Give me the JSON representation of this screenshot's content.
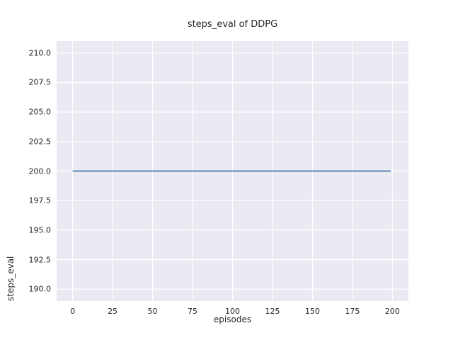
{
  "chart_data": {
    "type": "line",
    "title": "steps_eval of DDPG",
    "xlabel": "episodes",
    "ylabel": "steps_eval",
    "x_ticks": [
      0,
      25,
      50,
      75,
      100,
      125,
      150,
      175,
      200
    ],
    "x_tick_labels": [
      "0",
      "25",
      "50",
      "75",
      "100",
      "125",
      "150",
      "175",
      "200"
    ],
    "y_ticks": [
      190.0,
      192.5,
      195.0,
      197.5,
      200.0,
      202.5,
      205.0,
      207.5,
      210.0
    ],
    "y_tick_labels": [
      "190.0",
      "192.5",
      "195.0",
      "197.5",
      "200.0",
      "202.5",
      "205.0",
      "207.5",
      "210.0"
    ],
    "xlim": [
      -10,
      210
    ],
    "ylim": [
      189,
      211
    ],
    "grid": true,
    "legend": "none",
    "plot_background_color": "#eaeaf2",
    "gridline_color": "#ffffff",
    "text_color": "#262626",
    "series": [
      {
        "name": "DDPG steps_eval",
        "color": "#4c72b0",
        "x": [
          0,
          199
        ],
        "y": [
          200.0,
          200.0
        ],
        "note": "constant line at steps_eval = 200 from episode 0 to 199"
      }
    ]
  }
}
